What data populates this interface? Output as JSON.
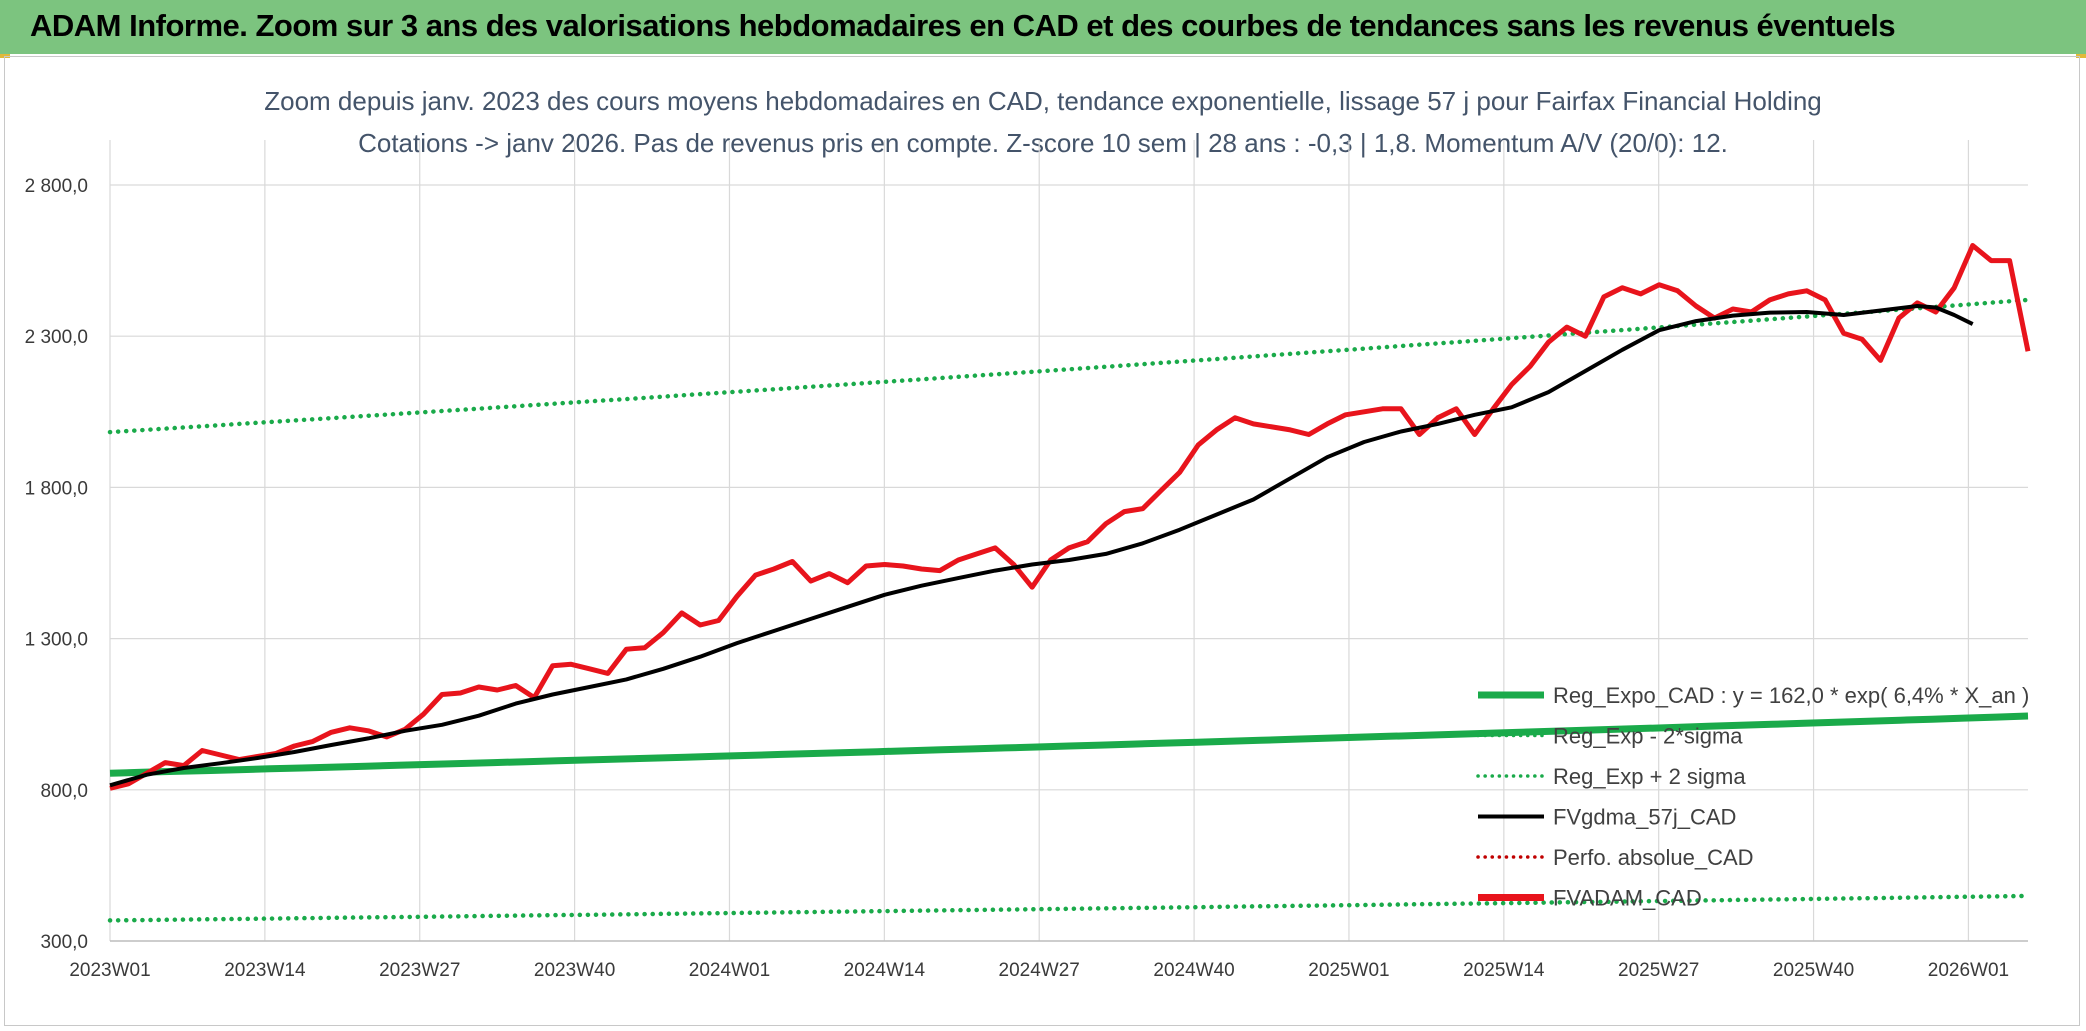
{
  "banner": {
    "title": "ADAM Informe. Zoom sur 3 ans des valorisations hebdomadaires en CAD et des courbes de tendances sans les revenus éventuels"
  },
  "colors": {
    "banner": "#7cc47f",
    "regression": "#1aaa4a",
    "price": "#e8141c",
    "moving_average": "#000000",
    "perf": "#c00000",
    "grid": "#d9d9d9"
  },
  "chart_data": {
    "type": "line",
    "title_line1": "Zoom depuis janv. 2023 des cours moyens hebdomadaires en CAD, tendance exponentielle, lissage 57 j pour Fairfax Financial Holding",
    "title_line2": "Cotations -> janv 2026. Pas de revenus pris en compte. Z-score 10 sem | 28 ans : -0,3 | 1,8. Momentum A/V (20/0): 12.",
    "ylim": [
      300,
      2800
    ],
    "y_ticks": [
      "300,0",
      "800,0",
      "1 300,0",
      "1 800,0",
      "2 300,0",
      "2 800,0"
    ],
    "y_tick_values": [
      300,
      800,
      1300,
      1800,
      2300,
      2800
    ],
    "x_tick_labels": [
      "2023W01",
      "2023W14",
      "2023W27",
      "2023W40",
      "2024W01",
      "2024W14",
      "2024W27",
      "2024W40",
      "2025W01",
      "2025W14",
      "2025W27",
      "2025W40",
      "2026W01"
    ],
    "x_tick_weeks": [
      0,
      13,
      26,
      39,
      52,
      65,
      78,
      91,
      104,
      117,
      130,
      143,
      156
    ],
    "week_count": 161,
    "grid": true,
    "legend_position": "bottom-right",
    "legend": [
      {
        "label": "Reg_Expo_CAD : y = 162,0 * exp( 6,4% *  X_an )",
        "style": "thick-solid",
        "color": "#1aaa4a"
      },
      {
        "label": "Reg_Exp - 2*sigma",
        "style": "dotted",
        "color": "#1aaa4a"
      },
      {
        "label": "Reg_Exp + 2 sigma",
        "style": "dotted",
        "color": "#1aaa4a"
      },
      {
        "label": "FVgdma_57j_CAD",
        "style": "solid",
        "color": "#000000"
      },
      {
        "label": "Perfo. absolue_CAD",
        "style": "dotted",
        "color": "#c00000"
      },
      {
        "label": "FVADAM_CAD",
        "style": "thick-solid",
        "color": "#e8141c"
      }
    ],
    "series": [
      {
        "name": "Reg_Expo_CAD : y = 162,0 * exp( 6,4% *  X_an )",
        "kind": "regression",
        "start": 855,
        "end": 1044
      },
      {
        "name": "Reg_Exp + 2 sigma",
        "kind": "upper",
        "start": 1983,
        "end": 2420
      },
      {
        "name": "Reg_Exp - 2*sigma",
        "kind": "lower",
        "start": 368,
        "end": 449
      },
      {
        "name": "FVgdma_57j_CAD",
        "kind": "ma",
        "points": [
          [
            0,
            815
          ],
          [
            4,
            850
          ],
          [
            8,
            872
          ],
          [
            12,
            888
          ],
          [
            16,
            905
          ],
          [
            20,
            925
          ],
          [
            24,
            948
          ],
          [
            28,
            970
          ],
          [
            32,
            995
          ],
          [
            36,
            1015
          ],
          [
            40,
            1045
          ],
          [
            44,
            1085
          ],
          [
            48,
            1115
          ],
          [
            52,
            1140
          ],
          [
            56,
            1165
          ],
          [
            60,
            1200
          ],
          [
            64,
            1240
          ],
          [
            68,
            1285
          ],
          [
            72,
            1325
          ],
          [
            76,
            1365
          ],
          [
            80,
            1405
          ],
          [
            84,
            1445
          ],
          [
            88,
            1475
          ],
          [
            92,
            1500
          ],
          [
            96,
            1525
          ],
          [
            100,
            1545
          ],
          [
            104,
            1560
          ],
          [
            108,
            1580
          ],
          [
            112,
            1615
          ],
          [
            116,
            1660
          ],
          [
            120,
            1710
          ],
          [
            124,
            1760
          ],
          [
            128,
            1830
          ],
          [
            132,
            1900
          ],
          [
            136,
            1950
          ],
          [
            140,
            1985
          ],
          [
            144,
            2010
          ],
          [
            148,
            2040
          ],
          [
            152,
            2065
          ],
          [
            156,
            2115
          ],
          [
            160,
            2185
          ],
          [
            164,
            2255
          ],
          [
            168,
            2320
          ],
          [
            172,
            2350
          ],
          [
            176,
            2368
          ],
          [
            180,
            2378
          ],
          [
            184,
            2380
          ],
          [
            188,
            2370
          ],
          [
            192,
            2385
          ],
          [
            196,
            2400
          ],
          [
            198,
            2395
          ],
          [
            200,
            2370
          ],
          [
            202,
            2340
          ]
        ],
        "note_units": "x in plot-step index"
      },
      {
        "name": "FVADAM_CAD",
        "kind": "price",
        "points": [
          [
            0,
            805
          ],
          [
            2,
            820
          ],
          [
            4,
            855
          ],
          [
            6,
            890
          ],
          [
            8,
            880
          ],
          [
            10,
            930
          ],
          [
            12,
            915
          ],
          [
            14,
            900
          ],
          [
            16,
            910
          ],
          [
            18,
            920
          ],
          [
            20,
            945
          ],
          [
            22,
            960
          ],
          [
            24,
            990
          ],
          [
            26,
            1005
          ],
          [
            28,
            995
          ],
          [
            30,
            975
          ],
          [
            32,
            1000
          ],
          [
            34,
            1050
          ],
          [
            36,
            1115
          ],
          [
            38,
            1120
          ],
          [
            40,
            1140
          ],
          [
            42,
            1130
          ],
          [
            44,
            1145
          ],
          [
            46,
            1105
          ],
          [
            48,
            1210
          ],
          [
            50,
            1215
          ],
          [
            52,
            1200
          ],
          [
            54,
            1185
          ],
          [
            56,
            1265
          ],
          [
            58,
            1270
          ],
          [
            60,
            1320
          ],
          [
            62,
            1385
          ],
          [
            64,
            1345
          ],
          [
            66,
            1360
          ],
          [
            68,
            1440
          ],
          [
            70,
            1510
          ],
          [
            72,
            1530
          ],
          [
            74,
            1555
          ],
          [
            76,
            1490
          ],
          [
            78,
            1515
          ],
          [
            80,
            1485
          ],
          [
            82,
            1540
          ],
          [
            84,
            1545
          ],
          [
            86,
            1540
          ],
          [
            88,
            1530
          ],
          [
            90,
            1525
          ],
          [
            92,
            1560
          ],
          [
            94,
            1580
          ],
          [
            96,
            1600
          ],
          [
            98,
            1545
          ],
          [
            100,
            1470
          ],
          [
            102,
            1560
          ],
          [
            104,
            1600
          ],
          [
            106,
            1620
          ],
          [
            108,
            1680
          ],
          [
            110,
            1720
          ],
          [
            112,
            1730
          ],
          [
            114,
            1790
          ],
          [
            116,
            1850
          ],
          [
            118,
            1940
          ],
          [
            120,
            1990
          ],
          [
            122,
            2030
          ],
          [
            124,
            2010
          ],
          [
            126,
            2000
          ],
          [
            128,
            1990
          ],
          [
            130,
            1975
          ],
          [
            132,
            2010
          ],
          [
            134,
            2040
          ],
          [
            136,
            2050
          ],
          [
            138,
            2060
          ],
          [
            140,
            2060
          ],
          [
            142,
            1975
          ],
          [
            144,
            2030
          ],
          [
            146,
            2060
          ],
          [
            148,
            1975
          ],
          [
            150,
            2060
          ],
          [
            152,
            2140
          ],
          [
            154,
            2200
          ],
          [
            156,
            2280
          ],
          [
            158,
            2330
          ],
          [
            160,
            2300
          ],
          [
            162,
            2430
          ],
          [
            164,
            2460
          ],
          [
            166,
            2440
          ],
          [
            168,
            2470
          ],
          [
            170,
            2450
          ],
          [
            172,
            2400
          ],
          [
            174,
            2360
          ],
          [
            176,
            2390
          ],
          [
            178,
            2380
          ],
          [
            180,
            2420
          ],
          [
            182,
            2440
          ],
          [
            184,
            2450
          ],
          [
            186,
            2420
          ],
          [
            188,
            2310
          ],
          [
            190,
            2290
          ],
          [
            192,
            2220
          ],
          [
            194,
            2360
          ],
          [
            196,
            2410
          ],
          [
            198,
            2380
          ],
          [
            200,
            2460
          ],
          [
            202,
            2600
          ],
          [
            204,
            2550
          ],
          [
            206,
            2550
          ],
          [
            208,
            2250
          ]
        ],
        "note_units": "x in plot-step index"
      }
    ]
  }
}
